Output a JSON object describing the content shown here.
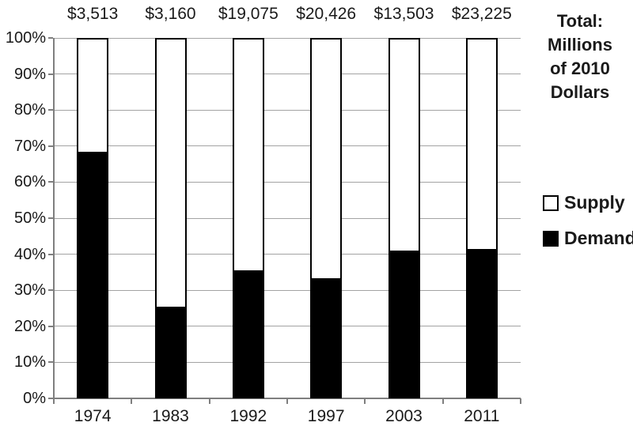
{
  "chart_data": {
    "type": "bar",
    "stacked": true,
    "categories": [
      "1974",
      "1983",
      "1992",
      "1997",
      "2003",
      "2011"
    ],
    "bar_totals": [
      "$3,513",
      "$3,160",
      "$19,075",
      "$20,426",
      "$13,503",
      "$23,225"
    ],
    "series": [
      {
        "name": "Demand",
        "color": "#000000",
        "values": [
          68,
          25,
          35,
          33,
          40.5,
          41
        ]
      },
      {
        "name": "Supply",
        "color": "#ffffff",
        "values": [
          32,
          75,
          65,
          67,
          59.5,
          59
        ]
      }
    ],
    "ylim": [
      0,
      100
    ],
    "ytick_step": 10,
    "ytick_labels": [
      "0%",
      "10%",
      "20%",
      "30%",
      "40%",
      "50%",
      "60%",
      "70%",
      "80%",
      "90%",
      "100%"
    ],
    "grid": true,
    "legend_position": "right",
    "units_note": "Total: Millions of 2010 Dollars"
  },
  "side_panel": {
    "lines": [
      "Total:",
      "Millions",
      "of 2010",
      "Dollars"
    ]
  },
  "legend": {
    "items": [
      {
        "label": "Supply",
        "fill": "#ffffff"
      },
      {
        "label": "Demand",
        "fill": "#000000"
      }
    ]
  },
  "colors": {
    "background": "#ffffff",
    "text": "#1a1a1a",
    "gridline": "#a3a3a3",
    "axis": "#7f7f7f",
    "bar_border": "#000000"
  }
}
